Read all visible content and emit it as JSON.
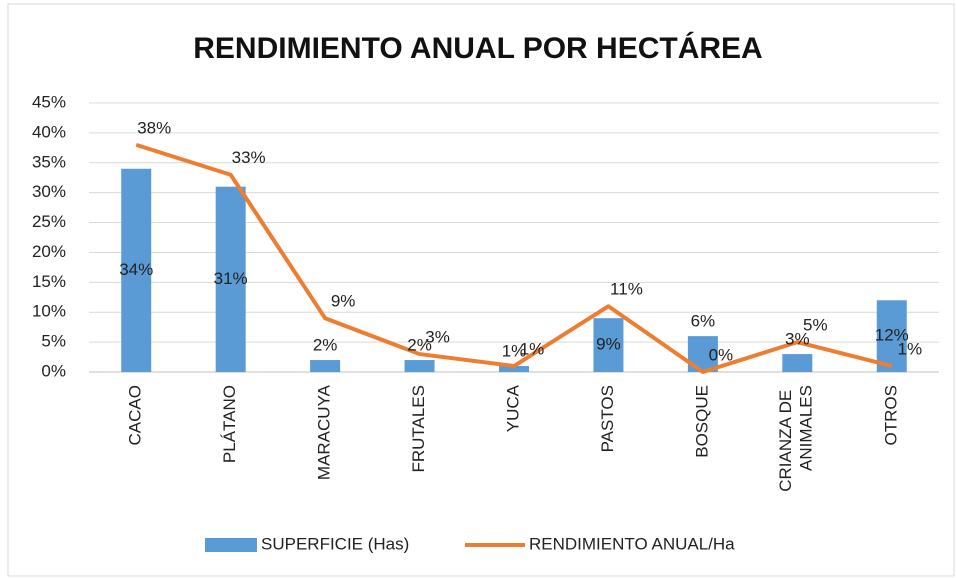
{
  "chart_data": {
    "type": "bar-line",
    "title": "RENDIMIENTO ANUAL POR HECTÁREA",
    "categories": [
      "CACAO",
      "PLÁTANO",
      "MARACUYA",
      "FRUTALES",
      "YUCA",
      "PASTOS",
      "BOSQUE",
      "CRIANZA DE ANIMALES",
      "OTROS"
    ],
    "series": [
      {
        "name": "SUPERFICIE (Has)",
        "type": "bar",
        "color": "#5b9bd5",
        "values": [
          34,
          31,
          2,
          2,
          1,
          9,
          6,
          3,
          12
        ],
        "value_labels": [
          "34%",
          "31%",
          "2%",
          "2%",
          "1%",
          "9%",
          "6%",
          "3%",
          "12%"
        ]
      },
      {
        "name": "RENDIMIENTO ANUAL/Ha",
        "type": "line",
        "color": "#ed7d31",
        "values": [
          38,
          33,
          9,
          3,
          1,
          11,
          0,
          5,
          1
        ],
        "value_labels": [
          "38%",
          "33%",
          "9%",
          "3%",
          "1%",
          "11%",
          "0%",
          "5%",
          "1%"
        ]
      }
    ],
    "ylim": [
      0,
      45
    ],
    "yticks": [
      {
        "value": 0,
        "label": "0%"
      },
      {
        "value": 5,
        "label": "5%"
      },
      {
        "value": 10,
        "label": "10%"
      },
      {
        "value": 15,
        "label": "15%"
      },
      {
        "value": 20,
        "label": "20%"
      },
      {
        "value": 25,
        "label": "25%"
      },
      {
        "value": 30,
        "label": "30%"
      },
      {
        "value": 35,
        "label": "35%"
      },
      {
        "value": 40,
        "label": "40%"
      },
      {
        "value": 45,
        "label": "45%"
      }
    ],
    "grid": true,
    "legend": "bottom"
  }
}
